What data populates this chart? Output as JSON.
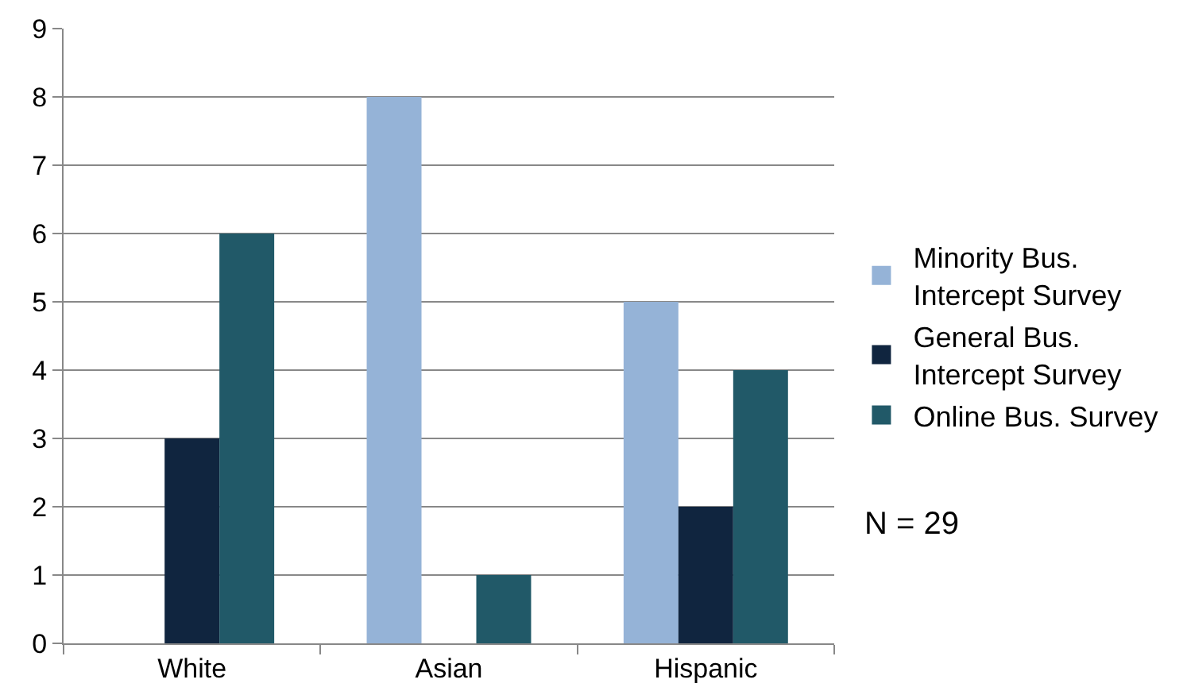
{
  "chart_data": {
    "type": "bar",
    "categories": [
      "White",
      "Asian",
      "Hispanic"
    ],
    "series": [
      {
        "name": "Minority Bus. Intercept Survey",
        "color": "#95b3d7",
        "values": [
          0,
          8,
          5
        ]
      },
      {
        "name": "General Bus. Intercept Survey",
        "color": "#10253f",
        "values": [
          3,
          0,
          2
        ]
      },
      {
        "name": "Online Bus. Survey",
        "color": "#215968",
        "values": [
          6,
          1,
          4
        ]
      }
    ],
    "ylim": [
      0,
      9
    ],
    "yticks": [
      0,
      1,
      2,
      3,
      4,
      5,
      6,
      7,
      8,
      9
    ],
    "grid": "y",
    "legend": "right",
    "annotations": [
      "N = 29"
    ]
  }
}
